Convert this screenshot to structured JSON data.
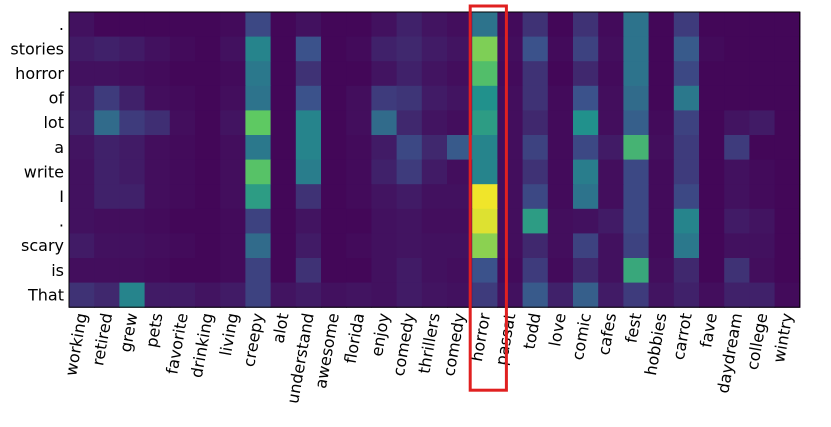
{
  "chart_data": {
    "type": "heatmap",
    "title": "",
    "xlabel": "",
    "ylabel": "",
    "colormap": "viridis",
    "value_range": [
      0,
      1
    ],
    "x_labels": [
      "working",
      "retired",
      "grew",
      "pets",
      "favorite",
      "drinking",
      "living",
      "creepy",
      "alot",
      "understand",
      "awesome",
      "florida",
      "enjoy",
      "comedy",
      "thrillers",
      "comedy",
      "horror",
      "passat",
      "todd",
      "love",
      "comic",
      "cafes",
      "fest",
      "hobbies",
      "carrot",
      "fave",
      "daydream",
      "college",
      "wintry"
    ],
    "y_labels": [
      ".",
      "stories",
      "horror",
      "of",
      "lot",
      "a",
      "write",
      "I",
      ".",
      "scary",
      "is",
      "That"
    ],
    "values": [
      [
        0.05,
        0.02,
        0.02,
        0.02,
        0.02,
        0.02,
        0.03,
        0.22,
        0.02,
        0.05,
        0.02,
        0.02,
        0.05,
        0.1,
        0.06,
        0.04,
        0.38,
        0.03,
        0.15,
        0.02,
        0.15,
        0.03,
        0.38,
        0.02,
        0.18,
        0.02,
        0.02,
        0.02,
        0.02
      ],
      [
        0.08,
        0.1,
        0.08,
        0.05,
        0.03,
        0.02,
        0.05,
        0.45,
        0.02,
        0.25,
        0.02,
        0.03,
        0.1,
        0.12,
        0.08,
        0.06,
        0.8,
        0.04,
        0.25,
        0.03,
        0.2,
        0.04,
        0.38,
        0.02,
        0.28,
        0.03,
        0.02,
        0.02,
        0.02
      ],
      [
        0.05,
        0.05,
        0.04,
        0.03,
        0.02,
        0.02,
        0.03,
        0.4,
        0.02,
        0.15,
        0.02,
        0.02,
        0.06,
        0.1,
        0.06,
        0.04,
        0.7,
        0.03,
        0.15,
        0.02,
        0.12,
        0.03,
        0.38,
        0.02,
        0.22,
        0.02,
        0.02,
        0.02,
        0.02
      ],
      [
        0.08,
        0.18,
        0.1,
        0.04,
        0.03,
        0.02,
        0.04,
        0.38,
        0.02,
        0.25,
        0.02,
        0.04,
        0.18,
        0.16,
        0.08,
        0.06,
        0.5,
        0.04,
        0.15,
        0.03,
        0.25,
        0.04,
        0.35,
        0.02,
        0.4,
        0.02,
        0.02,
        0.02,
        0.02
      ],
      [
        0.1,
        0.35,
        0.18,
        0.14,
        0.04,
        0.02,
        0.06,
        0.75,
        0.02,
        0.45,
        0.02,
        0.04,
        0.35,
        0.12,
        0.06,
        0.04,
        0.55,
        0.04,
        0.12,
        0.03,
        0.5,
        0.04,
        0.3,
        0.03,
        0.2,
        0.02,
        0.06,
        0.08,
        0.02
      ],
      [
        0.06,
        0.1,
        0.08,
        0.04,
        0.03,
        0.02,
        0.04,
        0.4,
        0.02,
        0.45,
        0.02,
        0.03,
        0.08,
        0.22,
        0.12,
        0.28,
        0.45,
        0.04,
        0.2,
        0.03,
        0.22,
        0.08,
        0.65,
        0.04,
        0.18,
        0.02,
        0.18,
        0.02,
        0.02
      ],
      [
        0.05,
        0.1,
        0.08,
        0.04,
        0.03,
        0.02,
        0.04,
        0.72,
        0.02,
        0.42,
        0.02,
        0.03,
        0.1,
        0.18,
        0.08,
        0.04,
        0.45,
        0.04,
        0.15,
        0.03,
        0.42,
        0.04,
        0.22,
        0.03,
        0.18,
        0.02,
        0.05,
        0.03,
        0.02
      ],
      [
        0.05,
        0.1,
        0.1,
        0.04,
        0.03,
        0.02,
        0.04,
        0.55,
        0.02,
        0.15,
        0.02,
        0.03,
        0.06,
        0.08,
        0.05,
        0.05,
        0.98,
        0.04,
        0.22,
        0.03,
        0.38,
        0.04,
        0.22,
        0.03,
        0.22,
        0.02,
        0.05,
        0.03,
        0.02
      ],
      [
        0.05,
        0.04,
        0.04,
        0.03,
        0.02,
        0.02,
        0.03,
        0.2,
        0.02,
        0.06,
        0.02,
        0.02,
        0.05,
        0.06,
        0.04,
        0.04,
        0.95,
        0.04,
        0.55,
        0.04,
        0.05,
        0.08,
        0.22,
        0.03,
        0.45,
        0.02,
        0.08,
        0.06,
        0.02
      ],
      [
        0.08,
        0.05,
        0.05,
        0.04,
        0.03,
        0.02,
        0.03,
        0.35,
        0.02,
        0.08,
        0.02,
        0.03,
        0.05,
        0.06,
        0.05,
        0.05,
        0.82,
        0.04,
        0.12,
        0.04,
        0.2,
        0.05,
        0.2,
        0.03,
        0.4,
        0.02,
        0.05,
        0.05,
        0.02
      ],
      [
        0.04,
        0.04,
        0.04,
        0.03,
        0.02,
        0.02,
        0.03,
        0.2,
        0.02,
        0.15,
        0.02,
        0.02,
        0.05,
        0.08,
        0.05,
        0.04,
        0.25,
        0.03,
        0.18,
        0.03,
        0.12,
        0.05,
        0.6,
        0.04,
        0.12,
        0.02,
        0.15,
        0.04,
        0.02
      ],
      [
        0.15,
        0.12,
        0.45,
        0.08,
        0.08,
        0.06,
        0.08,
        0.2,
        0.06,
        0.08,
        0.05,
        0.06,
        0.05,
        0.08,
        0.06,
        0.05,
        0.18,
        0.05,
        0.28,
        0.1,
        0.3,
        0.08,
        0.18,
        0.06,
        0.1,
        0.04,
        0.1,
        0.1,
        0.03
      ]
    ],
    "highlight": {
      "column_label": "horror",
      "color": "#e02020"
    }
  }
}
